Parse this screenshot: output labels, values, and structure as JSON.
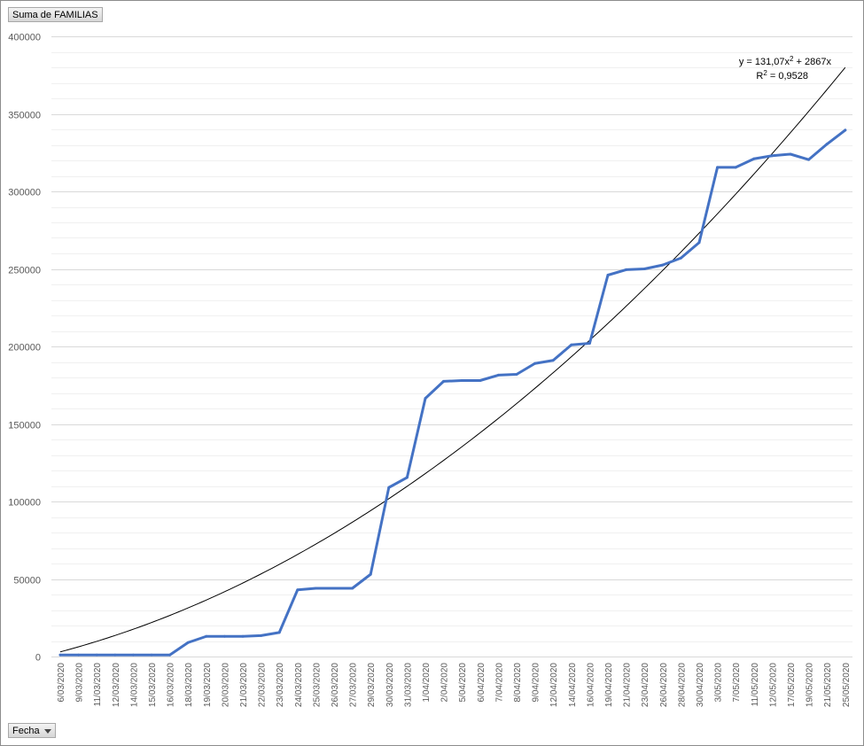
{
  "chart_data": {
    "type": "line",
    "value_field_label": "Suma de FAMILIAS",
    "axis_field_label": "Fecha",
    "categories": [
      "6/03/2020",
      "9/03/2020",
      "11/03/2020",
      "12/03/2020",
      "14/03/2020",
      "15/03/2020",
      "16/03/2020",
      "18/03/2020",
      "19/03/2020",
      "20/03/2020",
      "21/03/2020",
      "22/03/2020",
      "23/03/2020",
      "24/03/2020",
      "25/03/2020",
      "26/03/2020",
      "27/03/2020",
      "29/03/2020",
      "30/03/2020",
      "31/03/2020",
      "1/04/2020",
      "2/04/2020",
      "5/04/2020",
      "6/04/2020",
      "7/04/2020",
      "8/04/2020",
      "9/04/2020",
      "12/04/2020",
      "14/04/2020",
      "16/04/2020",
      "19/04/2020",
      "21/04/2020",
      "23/04/2020",
      "26/04/2020",
      "28/04/2020",
      "30/04/2020",
      "3/05/2020",
      "7/05/2020",
      "11/05/2020",
      "12/05/2020",
      "17/05/2020",
      "19/05/2020",
      "21/05/2020",
      "25/05/2020"
    ],
    "series": [
      {
        "color": "#4472c4",
        "values": [
          1000,
          1000,
          1000,
          1000,
          1000,
          1000,
          1000,
          9000,
          13000,
          13000,
          13000,
          13500,
          15500,
          43000,
          44000,
          44000,
          44000,
          53000,
          109000,
          115500,
          166500,
          177500,
          178000,
          178000,
          181500,
          182000,
          189000,
          191000,
          201000,
          202000,
          246000,
          249500,
          250000,
          252500,
          257000,
          267000,
          315500,
          315500,
          321000,
          323000,
          324000,
          320500,
          330500,
          339500
        ],
        "line_width": 3
      }
    ],
    "trendline": {
      "type": "polynomial",
      "color": "#000000",
      "coefficients": {
        "a": 131.07,
        "b": 2867,
        "c": 0
      },
      "equation_prefix": "y = 131,07x",
      "equation_sup": "2",
      "equation_suffix": " + 2867x",
      "r2_prefix": "R",
      "r2_sup": "2",
      "r2_suffix": " = 0,9528"
    },
    "ylim": [
      0,
      400000
    ],
    "y_ticks": [
      0,
      50000,
      100000,
      150000,
      200000,
      250000,
      300000,
      350000,
      400000
    ],
    "y_minor_step": 10000,
    "grid": true
  }
}
